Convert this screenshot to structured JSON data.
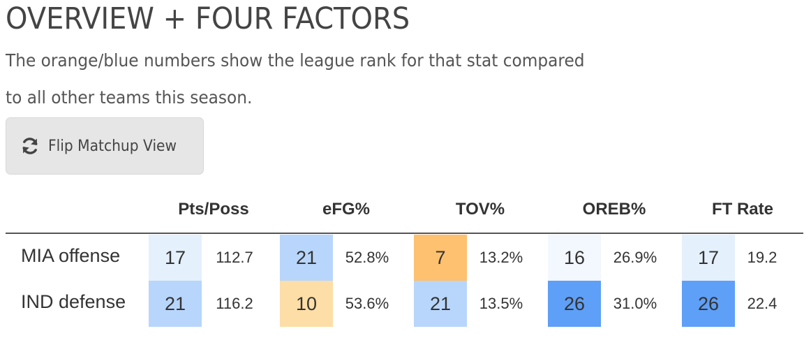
{
  "title": "OVERVIEW + FOUR FACTORS",
  "subtitle": "The orange/blue numbers show the league rank for that stat compared to all other teams this season.",
  "flip_button": {
    "label": "Flip Matchup View",
    "icon": "refresh-icon"
  },
  "columns": [
    "Pts/Poss",
    "eFG%",
    "TOV%",
    "OREB%",
    "FT Rate"
  ],
  "rows": [
    {
      "label": "MIA offense",
      "cells": [
        {
          "rank": "17",
          "value": "112.7",
          "color": "#e5f0fd"
        },
        {
          "rank": "21",
          "value": "52.8%",
          "color": "#b8d6fb"
        },
        {
          "rank": "7",
          "value": "13.2%",
          "color": "#fdc16f"
        },
        {
          "rank": "16",
          "value": "26.9%",
          "color": "#f3f7fe"
        },
        {
          "rank": "17",
          "value": "19.2",
          "color": "#e5f0fd"
        }
      ]
    },
    {
      "label": "IND defense",
      "cells": [
        {
          "rank": "21",
          "value": "116.2",
          "color": "#b8d6fb"
        },
        {
          "rank": "10",
          "value": "53.6%",
          "color": "#fddea6"
        },
        {
          "rank": "21",
          "value": "13.5%",
          "color": "#b8d6fb"
        },
        {
          "rank": "26",
          "value": "31.0%",
          "color": "#5e9ff7"
        },
        {
          "rank": "26",
          "value": "22.4",
          "color": "#5e9ff7"
        }
      ]
    }
  ]
}
